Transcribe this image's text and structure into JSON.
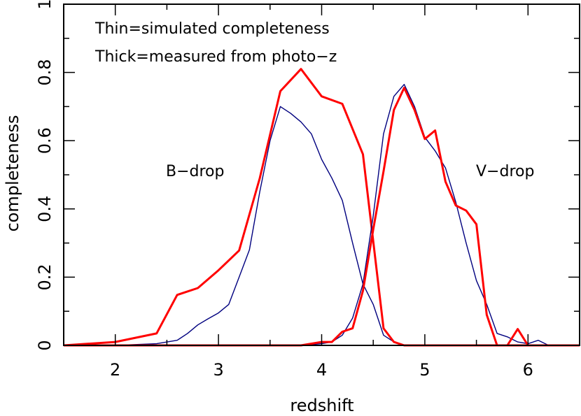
{
  "chart_data": {
    "type": "line",
    "title": "",
    "xlabel": "redshift",
    "ylabel": "completeness",
    "xlim": [
      1.5,
      6.5
    ],
    "ylim": [
      0,
      1
    ],
    "xticks": [
      2,
      3,
      4,
      5,
      6
    ],
    "xtick_labels": [
      "2",
      "3",
      "4",
      "5",
      "6"
    ],
    "yticks": [
      0,
      0.2,
      0.4,
      0.6,
      0.8,
      1
    ],
    "ytick_labels": [
      "0",
      "0.2",
      "0.4",
      "0.6",
      "0.8",
      "1"
    ],
    "annotations": [
      {
        "text": "Thin=simulated completeness"
      },
      {
        "text": "Thick=measured from photo−z"
      },
      {
        "text": "B−drop"
      },
      {
        "text": "V−drop"
      }
    ],
    "colors": {
      "thin": "#00007f",
      "thick": "#ff0000"
    },
    "series": [
      {
        "style": "thin",
        "x": [
          1.5,
          2.0,
          2.4,
          2.6,
          2.7,
          2.8,
          2.9,
          3.0,
          3.1,
          3.2,
          3.3,
          3.4,
          3.5,
          3.6,
          3.7,
          3.8,
          3.9,
          4.0,
          4.1,
          4.2,
          4.3,
          4.4,
          4.5,
          4.6,
          4.7,
          4.8,
          4.9,
          5.0,
          6.5
        ],
        "y": [
          0,
          0,
          0.005,
          0.015,
          0.035,
          0.06,
          0.078,
          0.095,
          0.12,
          0.2,
          0.28,
          0.45,
          0.6,
          0.7,
          0.68,
          0.655,
          0.62,
          0.545,
          0.49,
          0.425,
          0.3,
          0.18,
          0.12,
          0.03,
          0.01,
          0,
          0,
          0,
          0
        ]
      },
      {
        "style": "thick",
        "x": [
          1.5,
          2.0,
          2.4,
          2.6,
          2.8,
          3.0,
          3.2,
          3.4,
          3.6,
          3.8,
          4.0,
          4.2,
          4.4,
          4.6,
          4.7,
          4.8,
          4.9,
          5.0,
          5.1,
          6.5
        ],
        "y": [
          0,
          0.01,
          0.035,
          0.148,
          0.168,
          0.22,
          0.278,
          0.49,
          0.745,
          0.81,
          0.73,
          0.708,
          0.56,
          0.05,
          0.01,
          0,
          0,
          0,
          0,
          0
        ]
      },
      {
        "style": "thin",
        "x": [
          1.5,
          3.8,
          4.0,
          4.1,
          4.2,
          4.3,
          4.4,
          4.5,
          4.6,
          4.7,
          4.8,
          4.9,
          5.0,
          5.1,
          5.2,
          5.3,
          5.4,
          5.5,
          5.6,
          5.7,
          5.8,
          5.9,
          6.0,
          6.1,
          6.2,
          6.5
        ],
        "y": [
          0,
          0,
          0.005,
          0.01,
          0.03,
          0.08,
          0.18,
          0.38,
          0.62,
          0.73,
          0.765,
          0.7,
          0.61,
          0.57,
          0.52,
          0.42,
          0.3,
          0.19,
          0.12,
          0.035,
          0.025,
          0.01,
          0.005,
          0.015,
          0,
          0
        ]
      },
      {
        "style": "thick",
        "x": [
          1.5,
          3.8,
          4.0,
          4.1,
          4.2,
          4.3,
          4.4,
          4.5,
          4.6,
          4.7,
          4.8,
          4.9,
          5.0,
          5.1,
          5.2,
          5.3,
          5.4,
          5.5,
          5.6,
          5.7,
          5.8,
          5.9,
          6.0,
          6.5
        ],
        "y": [
          0,
          0,
          0.01,
          0.01,
          0.04,
          0.05,
          0.16,
          0.34,
          0.51,
          0.69,
          0.755,
          0.69,
          0.605,
          0.63,
          0.48,
          0.41,
          0.395,
          0.355,
          0.09,
          0,
          0,
          0.048,
          0,
          0
        ]
      }
    ]
  }
}
